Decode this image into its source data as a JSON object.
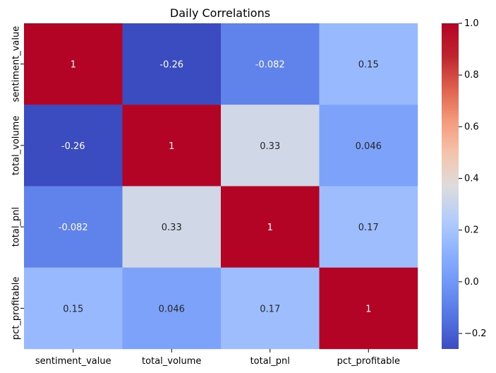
{
  "chart_data": {
    "type": "heatmap",
    "title": "Daily Correlations",
    "xlabel": "",
    "ylabel": "",
    "x_categories": [
      "sentiment_value",
      "total_volume",
      "total_pnl",
      "pct_profitable"
    ],
    "y_categories": [
      "sentiment_value",
      "total_volume",
      "total_pnl",
      "pct_profitable"
    ],
    "values": [
      [
        1,
        -0.26,
        -0.082,
        0.15
      ],
      [
        -0.26,
        1,
        0.33,
        0.046
      ],
      [
        -0.082,
        0.33,
        1,
        0.17
      ],
      [
        0.15,
        0.046,
        0.17,
        1
      ]
    ],
    "cell_labels": [
      [
        "1",
        "-0.26",
        "-0.082",
        "0.15"
      ],
      [
        "-0.26",
        "1",
        "0.33",
        "0.046"
      ],
      [
        "-0.082",
        "0.33",
        "1",
        "0.17"
      ],
      [
        "0.15",
        "0.046",
        "0.17",
        "1"
      ]
    ],
    "colormap": "coolwarm",
    "vmin": -0.26,
    "vmax": 1,
    "colorbar_ticks": [
      -0.2,
      0.0,
      0.2,
      0.4,
      0.6,
      0.8,
      1.0
    ],
    "colorbar_tick_labels": [
      "−0.2",
      "0.0",
      "0.2",
      "0.4",
      "0.6",
      "0.8",
      "1.0"
    ],
    "grid": false,
    "legend": "colorbar-right"
  }
}
